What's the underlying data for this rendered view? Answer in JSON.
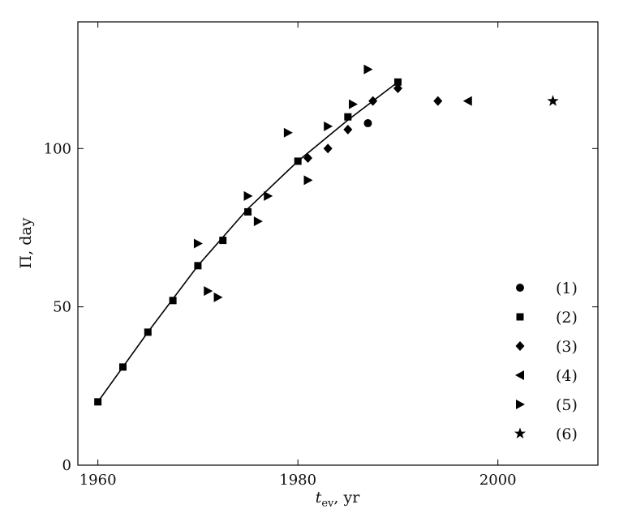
{
  "chart_data": {
    "type": "scatter",
    "title": "",
    "xlabel": {
      "main": "t",
      "sub": "ev",
      "rest": ",  yr"
    },
    "ylabel": "Π,  day",
    "xlim": [
      1958,
      2010
    ],
    "ylim": [
      0,
      140
    ],
    "xticks": [
      1960,
      1980,
      2000
    ],
    "yticks": [
      0,
      50,
      100
    ],
    "grid": false,
    "legend_position": "bottom-right",
    "series": [
      {
        "name": "(1)",
        "marker": "circle",
        "points": [
          [
            1987,
            108
          ]
        ]
      },
      {
        "name": "(2)",
        "marker": "square",
        "points": [
          [
            1960,
            20
          ],
          [
            1962.5,
            31
          ],
          [
            1965,
            42
          ],
          [
            1967.5,
            52
          ],
          [
            1970,
            63
          ],
          [
            1972.5,
            71
          ],
          [
            1975,
            80
          ],
          [
            1980,
            96
          ],
          [
            1985,
            110
          ],
          [
            1990,
            121
          ]
        ]
      },
      {
        "name": "(3)",
        "marker": "diamond",
        "points": [
          [
            1981,
            97
          ],
          [
            1983,
            100
          ],
          [
            1985,
            106
          ],
          [
            1987.5,
            115
          ],
          [
            1990,
            119
          ],
          [
            1994,
            115
          ]
        ]
      },
      {
        "name": "(4)",
        "marker": "triangle-left",
        "points": [
          [
            1997,
            115
          ]
        ]
      },
      {
        "name": "(5)",
        "marker": "triangle-right",
        "points": [
          [
            1970,
            70
          ],
          [
            1971,
            55
          ],
          [
            1972,
            53
          ],
          [
            1975,
            85
          ],
          [
            1976,
            77
          ],
          [
            1977,
            85
          ],
          [
            1979,
            105
          ],
          [
            1981,
            90
          ],
          [
            1983,
            107
          ],
          [
            1985.5,
            114
          ],
          [
            1987,
            125
          ]
        ]
      },
      {
        "name": "(6)",
        "marker": "star",
        "points": [
          [
            2005.5,
            115
          ]
        ]
      }
    ],
    "fit_line": {
      "points": [
        [
          1960,
          20
        ],
        [
          1965,
          42
        ],
        [
          1970,
          63
        ],
        [
          1975,
          81
        ],
        [
          1980,
          96
        ],
        [
          1985,
          109
        ],
        [
          1990,
          121
        ]
      ]
    }
  }
}
